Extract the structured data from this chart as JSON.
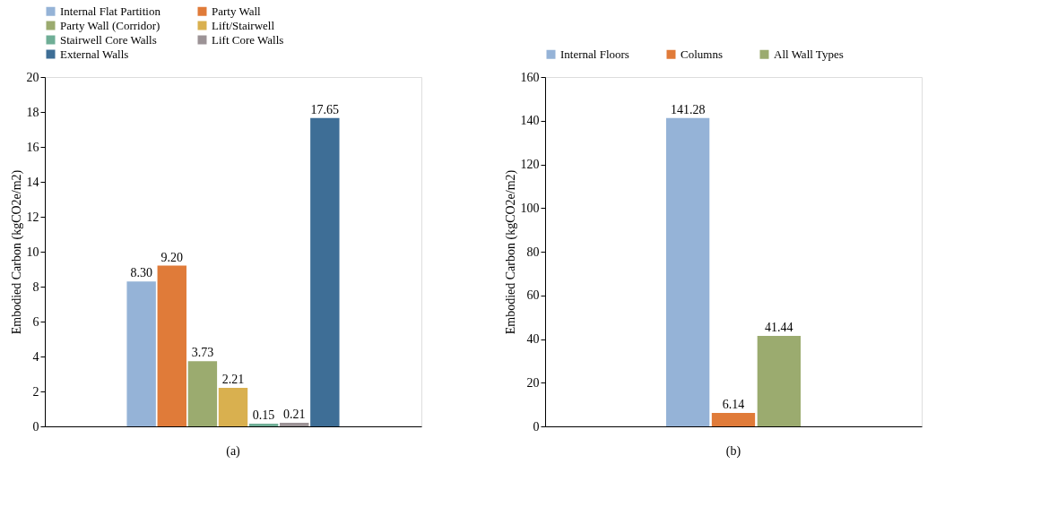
{
  "chart_data": [
    {
      "type": "bar",
      "categories": [
        null
      ],
      "ylabel": "Embodied Carbon (kgCO2e/m2)",
      "ylim": [
        0,
        20
      ],
      "yticks": [
        0,
        2,
        4,
        6,
        8,
        10,
        12,
        14,
        16,
        18,
        20
      ],
      "grid": false,
      "legend": "top",
      "tick_labels": "y",
      "annotations": [
        "(a)"
      ],
      "series": [
        {
          "name": "Internal Flat Partition",
          "color": "#95b3d7",
          "values": [
            8.3
          ],
          "value_labels": [
            "8.30"
          ]
        },
        {
          "name": "Party Wall",
          "color": "#e07b39",
          "values": [
            9.2
          ],
          "value_labels": [
            "9.20"
          ]
        },
        {
          "name": "Party Wall (Corridor)",
          "color": "#9bab6f",
          "values": [
            3.73
          ],
          "value_labels": [
            "3.73"
          ]
        },
        {
          "name": "Lift/Stairwell",
          "color": "#d9b04f",
          "values": [
            2.21
          ],
          "value_labels": [
            "2.21"
          ]
        },
        {
          "name": "Stairwell Core Walls",
          "color": "#6fae96",
          "values": [
            0.15
          ],
          "value_labels": [
            "0.15"
          ]
        },
        {
          "name": "Lift Core Walls",
          "color": "#9c9396",
          "values": [
            0.21
          ],
          "value_labels": [
            "0.21"
          ]
        },
        {
          "name": "External Walls",
          "color": "#3e6e96",
          "values": [
            17.65
          ],
          "value_labels": [
            "17.65"
          ]
        }
      ]
    },
    {
      "type": "bar",
      "categories": [
        null
      ],
      "ylabel": "Embodied Carbon (kgCO2e/m2)",
      "ylim": [
        0,
        160
      ],
      "yticks": [
        0,
        20,
        40,
        60,
        80,
        100,
        120,
        140,
        160
      ],
      "grid": false,
      "legend": "top",
      "tick_labels": "y",
      "data_labels": true,
      "annotations": [
        "(b)"
      ],
      "series": [
        {
          "name": "Internal Floors",
          "color": "#95b3d7",
          "values": [
            141.28
          ]
        },
        {
          "name": "Columns",
          "color": "#e07b39",
          "values": [
            6.14
          ]
        },
        {
          "name": "All Wall Types",
          "color": "#9bab6f",
          "values": [
            41.44
          ]
        }
      ]
    }
  ]
}
